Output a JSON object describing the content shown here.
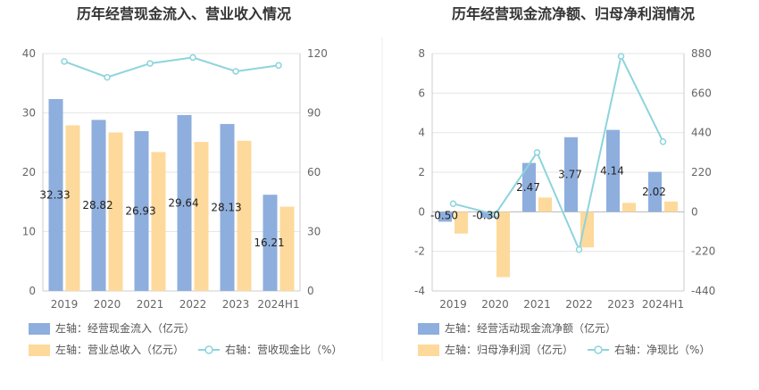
{
  "chart_data": [
    {
      "type": "bar",
      "title": "历年经营现金流入、营业收入情况",
      "categories": [
        "2019",
        "2020",
        "2021",
        "2022",
        "2023",
        "2024H1"
      ],
      "ylim": [
        0,
        40
      ],
      "y_ticks": [
        "0",
        "10",
        "20",
        "30",
        "40"
      ],
      "y2lim": [
        0,
        120
      ],
      "y2_ticks": [
        "0",
        "30",
        "60",
        "90",
        "120"
      ],
      "grid": true,
      "legend_position": "bottom",
      "series": [
        {
          "name": "左轴：经营现金流入（亿元）",
          "type": "bar",
          "axis": "left",
          "color": "#8eaedd",
          "values": [
            32.33,
            28.82,
            26.93,
            29.64,
            28.13,
            16.21
          ],
          "labels": [
            "32.33",
            "28.82",
            "26.93",
            "29.64",
            "28.13",
            "16.21"
          ]
        },
        {
          "name": "左轴：营业总收入（亿元）",
          "type": "bar",
          "axis": "left",
          "color": "#fdd99b",
          "values": [
            27.9,
            26.7,
            23.4,
            25.1,
            25.3,
            14.2
          ]
        },
        {
          "name": "右轴：营收现金比（%）",
          "type": "line",
          "axis": "right",
          "color": "#8dd4dc",
          "values": [
            116,
            108,
            115,
            118,
            111,
            114
          ]
        }
      ]
    },
    {
      "type": "bar",
      "title": "历年经营现金流净额、归母净利润情况",
      "categories": [
        "2019",
        "2020",
        "2021",
        "2022",
        "2023",
        "2024H1"
      ],
      "ylim": [
        -4,
        8
      ],
      "y_ticks": [
        "-4",
        "-2",
        "0",
        "2",
        "4",
        "6",
        "8"
      ],
      "y2lim": [
        -440,
        880
      ],
      "y2_ticks": [
        "-440",
        "-220",
        "0",
        "220",
        "440",
        "660",
        "880"
      ],
      "grid": true,
      "legend_position": "bottom",
      "series": [
        {
          "name": "左轴：经营活动现金流净额（亿元）",
          "type": "bar",
          "axis": "left",
          "color": "#8eaedd",
          "values": [
            -0.5,
            -0.3,
            2.47,
            3.77,
            4.14,
            2.02
          ],
          "labels": [
            "-0.50",
            "-0.30",
            "2.47",
            "3.77",
            "4.14",
            "2.02"
          ]
        },
        {
          "name": "左轴：归母净利润（亿元）",
          "type": "bar",
          "axis": "left",
          "color": "#fdd99b",
          "values": [
            -1.1,
            -3.3,
            0.72,
            -1.8,
            0.45,
            0.52
          ]
        },
        {
          "name": "右轴：净现比（%）",
          "type": "line",
          "axis": "right",
          "color": "#8dd4dc",
          "values": [
            45,
            -15,
            330,
            -210,
            865,
            390
          ]
        }
      ]
    }
  ]
}
